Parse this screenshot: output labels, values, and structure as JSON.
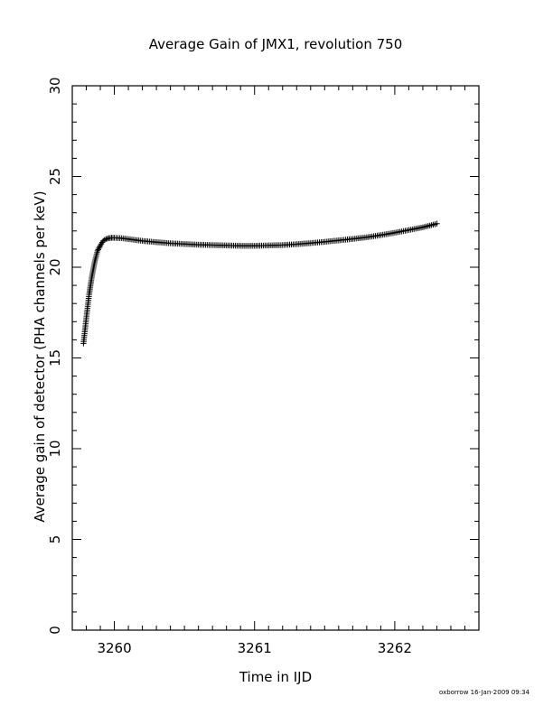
{
  "chart_data": {
    "type": "scatter",
    "title": "Average Gain of JMX1, revolution 750",
    "xlabel": "Time in IJD",
    "ylabel": "Average gain of detector (PHA channels per keV)",
    "xlim": [
      3259.7,
      3262.6
    ],
    "ylim": [
      0,
      30
    ],
    "x_ticks": [
      3260,
      3261,
      3262
    ],
    "x_tick_labels": [
      "3260",
      "3261",
      "3262"
    ],
    "y_ticks": [
      0,
      5,
      10,
      15,
      20,
      25,
      30
    ],
    "y_tick_labels": [
      "0",
      "5",
      "10",
      "15",
      "20",
      "25",
      "30"
    ],
    "grid": false,
    "marker": "+",
    "series": [
      {
        "x": [
          3259.78,
          3259.8,
          3259.82,
          3259.84,
          3259.86,
          3259.88,
          3259.9,
          3259.92,
          3259.94,
          3259.96,
          3259.98,
          3260.0,
          3260.05,
          3260.1,
          3260.2,
          3260.3,
          3260.4,
          3260.5,
          3260.6,
          3260.7,
          3260.8,
          3260.9,
          3261.0,
          3261.1,
          3261.2,
          3261.3,
          3261.4,
          3261.5,
          3261.6,
          3261.7,
          3261.8,
          3261.9,
          3262.0,
          3262.1,
          3262.2,
          3262.3
        ],
        "y": [
          15.8,
          17.2,
          18.5,
          19.5,
          20.3,
          20.9,
          21.2,
          21.45,
          21.55,
          21.6,
          21.62,
          21.62,
          21.6,
          21.55,
          21.45,
          21.38,
          21.32,
          21.28,
          21.24,
          21.22,
          21.2,
          21.18,
          21.18,
          21.2,
          21.22,
          21.27,
          21.33,
          21.4,
          21.48,
          21.56,
          21.65,
          21.77,
          21.9,
          22.05,
          22.2,
          22.4
        ]
      }
    ]
  },
  "footer": {
    "credit": "oxborrow 16-Jan-2009 09:34"
  }
}
